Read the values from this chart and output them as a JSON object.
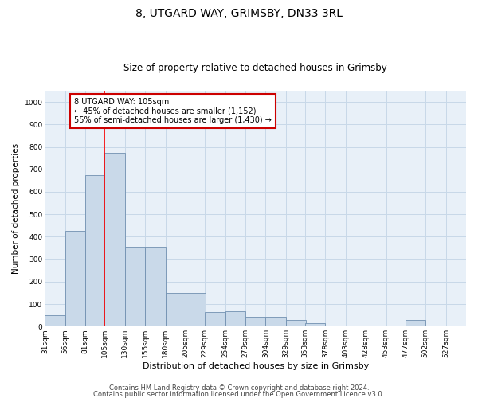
{
  "title": "8, UTGARD WAY, GRIMSBY, DN33 3RL",
  "subtitle": "Size of property relative to detached houses in Grimsby",
  "xlabel": "Distribution of detached houses by size in Grimsby",
  "ylabel": "Number of detached properties",
  "footer_line1": "Contains HM Land Registry data © Crown copyright and database right 2024.",
  "footer_line2": "Contains public sector information licensed under the Open Government Licence v3.0.",
  "annotation_line1": "8 UTGARD WAY: 105sqm",
  "annotation_line2": "← 45% of detached houses are smaller (1,152)",
  "annotation_line3": "55% of semi-detached houses are larger (1,430) →",
  "bar_edges": [
    31,
    56,
    81,
    105,
    130,
    155,
    180,
    205,
    229,
    254,
    279,
    304,
    329,
    353,
    378,
    403,
    428,
    453,
    477,
    502,
    527
  ],
  "bar_heights": [
    50,
    425,
    675,
    775,
    355,
    355,
    150,
    150,
    65,
    70,
    45,
    45,
    30,
    15,
    0,
    0,
    0,
    0,
    30,
    0,
    0
  ],
  "bar_color": "#c9d9e9",
  "bar_edge_color": "#7090b0",
  "red_line_x": 105,
  "ylim": [
    0,
    1050
  ],
  "yticks": [
    0,
    100,
    200,
    300,
    400,
    500,
    600,
    700,
    800,
    900,
    1000
  ],
  "annotation_box_color": "#cc0000",
  "grid_color": "#c8d8e8",
  "bg_color": "#e8f0f8",
  "title_fontsize": 10,
  "subtitle_fontsize": 8.5,
  "tick_fontsize": 6.5,
  "ylabel_fontsize": 7.5,
  "xlabel_fontsize": 8,
  "ann_fontsize": 7,
  "footer_fontsize": 6
}
